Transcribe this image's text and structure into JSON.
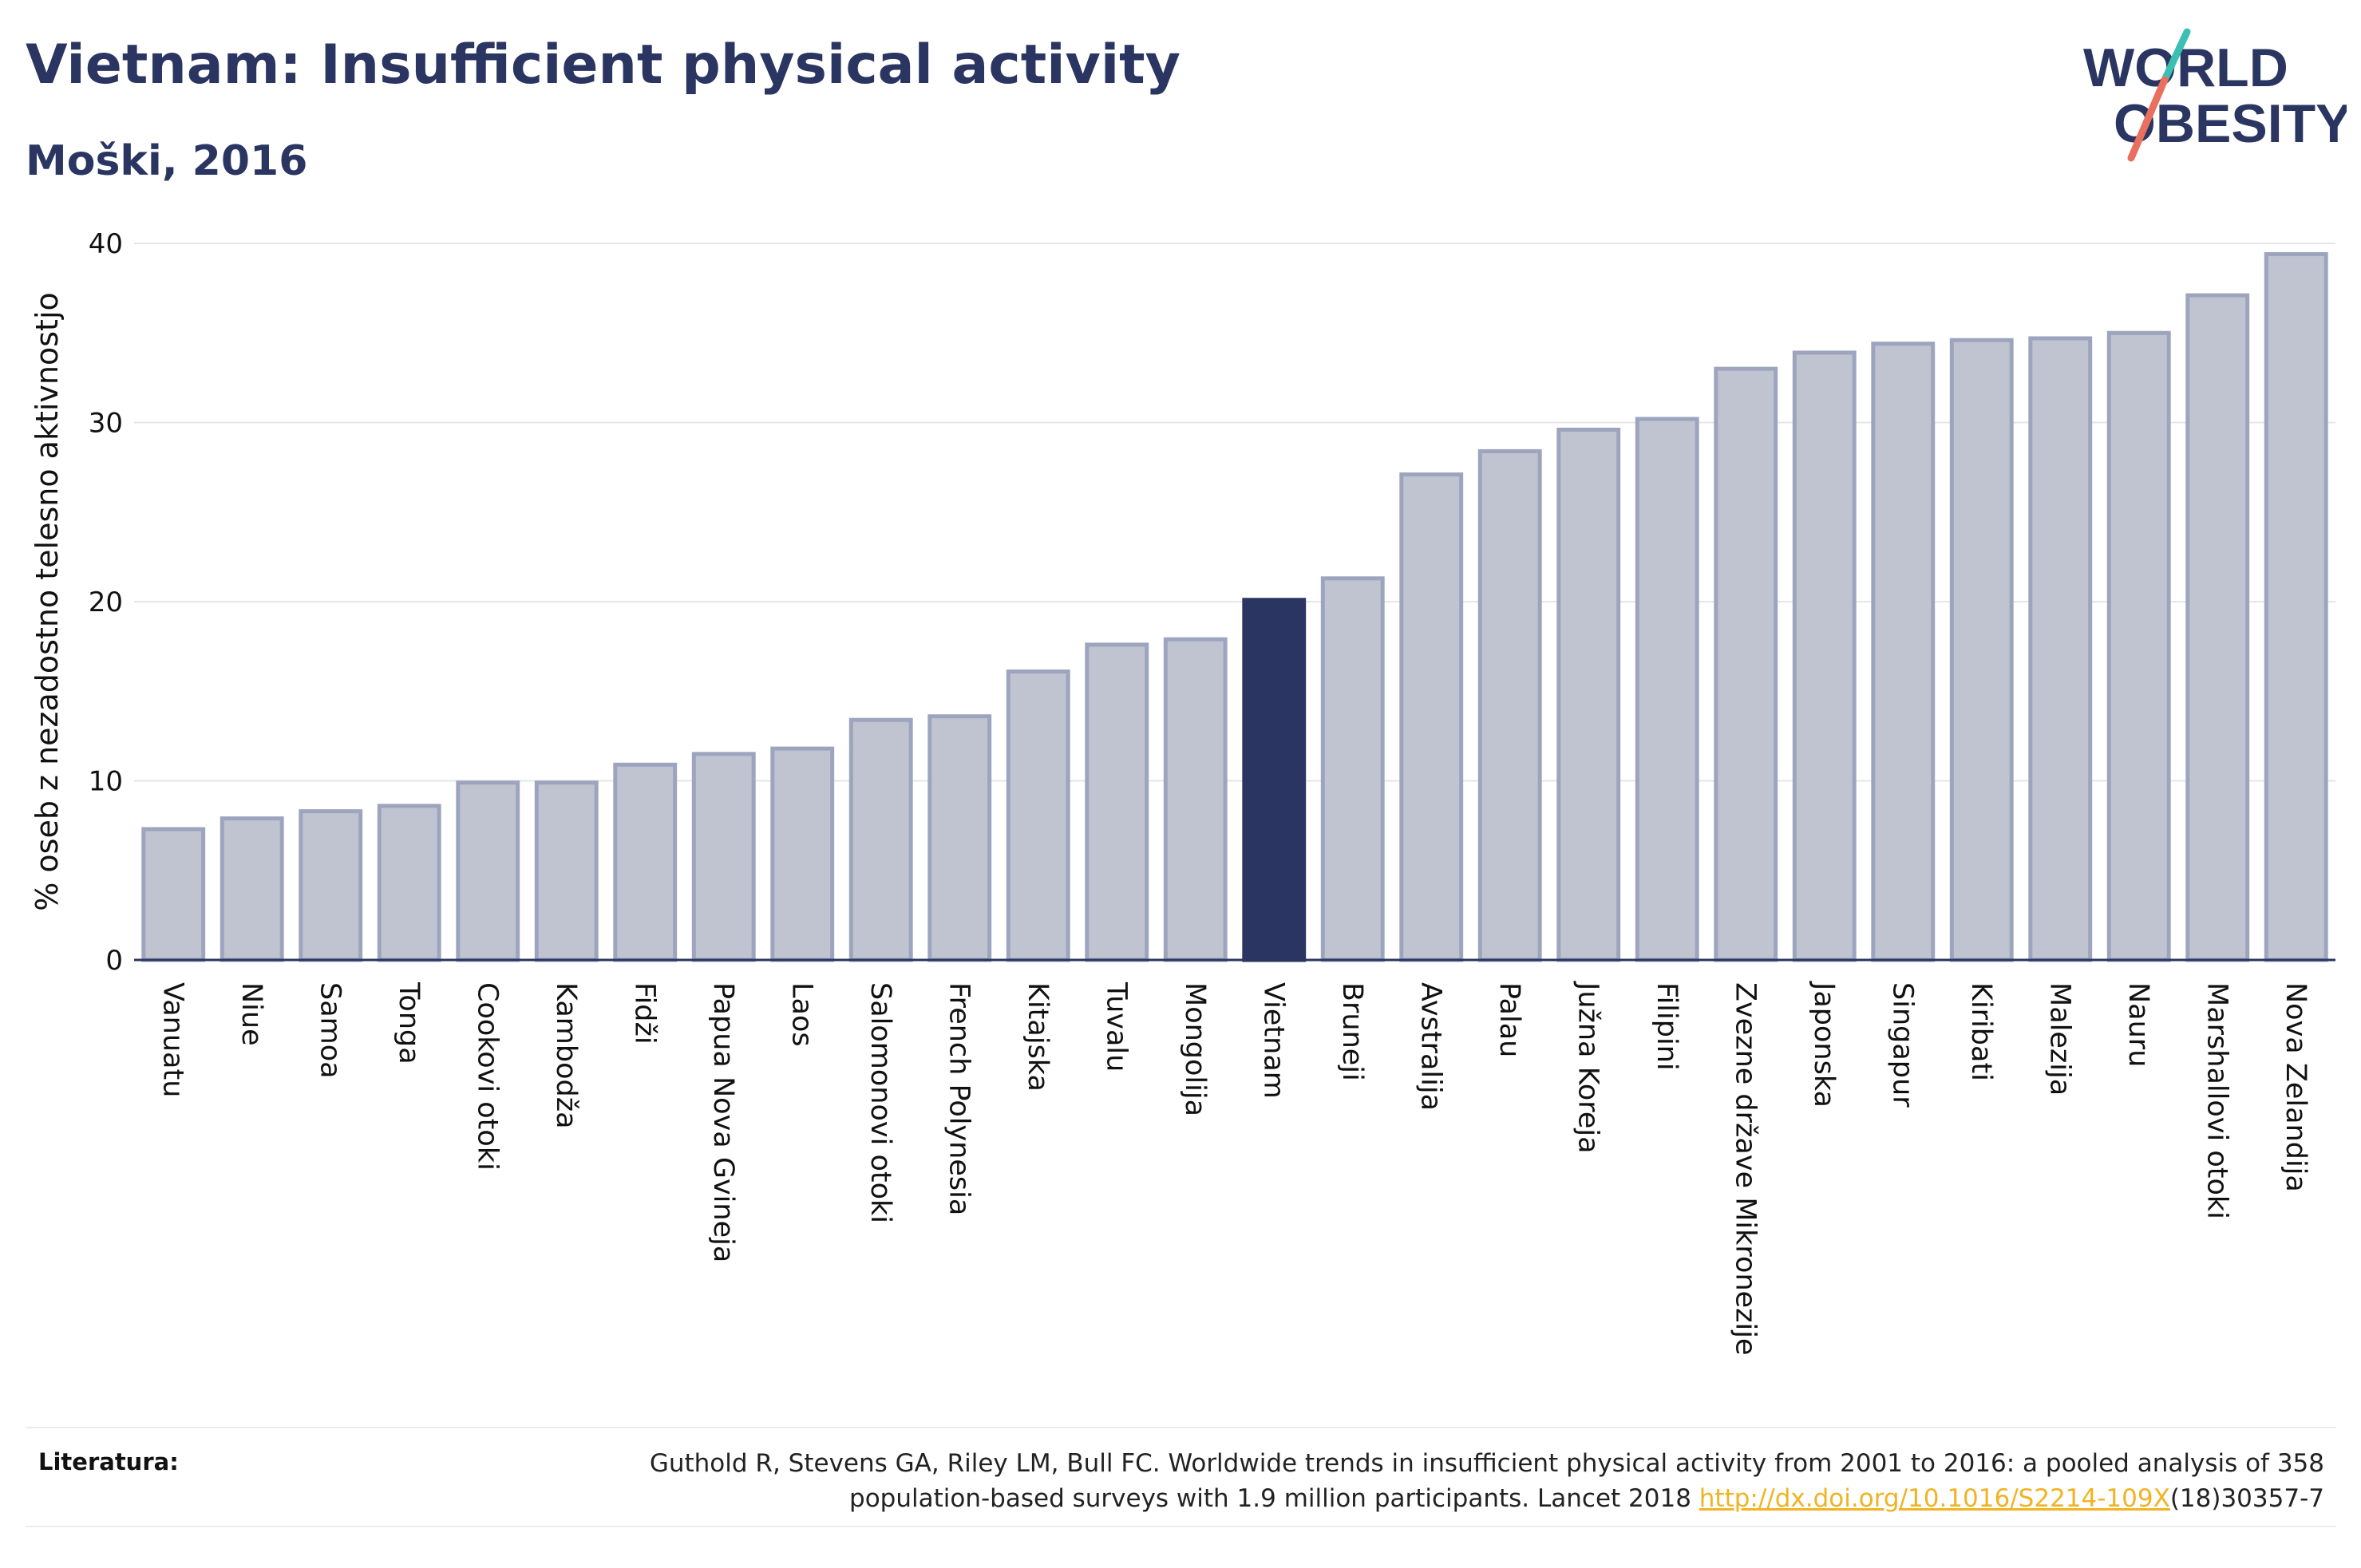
{
  "header": {
    "title": "Vietnam: Insufficient physical activity",
    "subtitle": "Moški, 2016"
  },
  "logo": {
    "line1": "WORLD",
    "line2": "OBESITY"
  },
  "colors": {
    "title": "#2a3561",
    "bar_default_fill": "#c0c4d1",
    "bar_default_stroke": "#9da4bd",
    "bar_highlight": "#2a3561",
    "link": "#f0b323"
  },
  "chart_data": {
    "type": "bar",
    "ylabel": "% oseb z nezadostno telesno aktivnostjo",
    "ylim": [
      0,
      40
    ],
    "yticks": [
      0,
      10,
      20,
      30,
      40
    ],
    "grid": true,
    "highlight": "Vietnam",
    "categories": [
      "Vanuatu",
      "Niue",
      "Samoa",
      "Tonga",
      "Cookovi otoki",
      "Kambodža",
      "Fidži",
      "Papua Nova Gvineja",
      "Laos",
      "Salomonovi otoki",
      "French Polynesia",
      "Kitajska",
      "Tuvalu",
      "Mongolija",
      "Vietnam",
      "Bruneji",
      "Avstralija",
      "Palau",
      "Južna Koreja",
      "Filipini",
      "Zvezne države Mikronezije",
      "Japonska",
      "Singapur",
      "Kiribati",
      "Malezija",
      "Nauru",
      "Marshallovi otoki",
      "Nova Zelandija"
    ],
    "values": [
      7.3,
      7.9,
      8.3,
      8.6,
      9.9,
      9.9,
      10.9,
      11.5,
      11.8,
      13.4,
      13.6,
      16.1,
      17.6,
      17.9,
      20.1,
      21.3,
      27.1,
      28.4,
      29.6,
      30.2,
      33.0,
      33.9,
      34.4,
      34.6,
      34.7,
      35.0,
      37.1,
      39.4
    ]
  },
  "footer": {
    "label": "Literatura:",
    "line1": "Guthold R, Stevens GA, Riley LM, Bull FC. Worldwide trends in insufficient physical activity from 2001 to 2016: a pooled analysis of 358",
    "line2_pre": "population-based surveys with 1.9 million participants. Lancet 2018 ",
    "link": "http://dx.doi.org/10.1016/S2214-109X",
    "line2_post": "(18)30357-7"
  }
}
